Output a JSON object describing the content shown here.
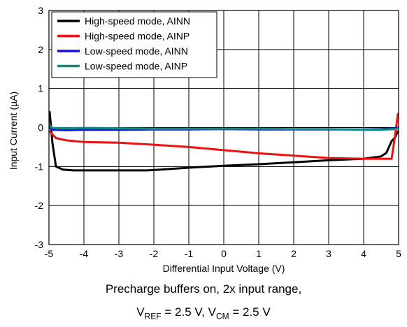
{
  "chart_data": {
    "type": "line",
    "xlabel": "Differential Input Voltage (V)",
    "ylabel": "Input Current (µA)",
    "xlim": [
      -5,
      5
    ],
    "ylim": [
      -3,
      3
    ],
    "xticks": [
      "-5",
      "-4",
      "-3",
      "-2",
      "-1",
      "0",
      "1",
      "2",
      "3",
      "4",
      "5"
    ],
    "yticks": [
      "3",
      "2",
      "1",
      "0",
      "-1",
      "-2",
      "-3"
    ],
    "grid": true,
    "legend_position": "top-left",
    "series": [
      {
        "name": "High-speed mode, AINN",
        "color": "#000000",
        "x": [
          -4.98,
          -4.9,
          -4.8,
          -4.6,
          -4.3,
          -4.0,
          -3.0,
          -2.2,
          -1.8,
          -1.0,
          0.0,
          1.0,
          2.0,
          3.0,
          4.0,
          4.5,
          4.65,
          4.8,
          4.9,
          4.98
        ],
        "y": [
          0.4,
          -0.4,
          -1.0,
          -1.08,
          -1.1,
          -1.1,
          -1.1,
          -1.1,
          -1.08,
          -1.03,
          -0.98,
          -0.94,
          -0.89,
          -0.84,
          -0.8,
          -0.74,
          -0.65,
          -0.35,
          -0.25,
          -0.1
        ]
      },
      {
        "name": "High-speed mode, AINP",
        "color": "#ee1111",
        "x": [
          -4.98,
          -4.9,
          -4.8,
          -4.5,
          -4.0,
          -3.0,
          -2.0,
          -1.0,
          0.0,
          1.0,
          2.0,
          3.0,
          4.0,
          4.5,
          4.8,
          4.9,
          4.98
        ],
        "y": [
          -0.1,
          -0.18,
          -0.27,
          -0.33,
          -0.37,
          -0.39,
          -0.44,
          -0.5,
          -0.58,
          -0.66,
          -0.72,
          -0.78,
          -0.8,
          -0.8,
          -0.8,
          -0.2,
          0.35
        ]
      },
      {
        "name": "Low-speed mode, AINN",
        "color": "#1111dd",
        "x": [
          -4.98,
          -4.9,
          -4.5,
          -4.0,
          -3.0,
          -2.0,
          -1.0,
          0.0,
          1.0,
          2.0,
          3.0,
          4.0,
          4.5,
          4.9,
          4.98
        ],
        "y": [
          0.0,
          -0.06,
          -0.07,
          -0.06,
          -0.06,
          -0.05,
          -0.05,
          -0.04,
          -0.05,
          -0.05,
          -0.05,
          -0.05,
          -0.04,
          -0.02,
          0.0
        ]
      },
      {
        "name": "Low-speed mode, AINP",
        "color": "#0e8a7e",
        "x": [
          -4.98,
          -4.9,
          -4.5,
          -4.0,
          -3.0,
          -2.0,
          -1.0,
          0.0,
          1.0,
          2.0,
          3.0,
          4.0,
          4.5,
          4.9,
          4.98
        ],
        "y": [
          0.05,
          -0.01,
          -0.02,
          -0.01,
          -0.02,
          -0.03,
          -0.03,
          -0.03,
          -0.03,
          -0.04,
          -0.04,
          -0.06,
          -0.06,
          -0.04,
          -0.02
        ]
      }
    ],
    "caption_line1": "Precharge buffers on, 2x input range,",
    "caption_line2": {
      "vref_main": "V",
      "vref_sub": "REF",
      "vref_value": " = 2.5 V, ",
      "vcm_main": "V",
      "vcm_sub": "CM",
      "vcm_value": " = 2.5 V"
    }
  }
}
